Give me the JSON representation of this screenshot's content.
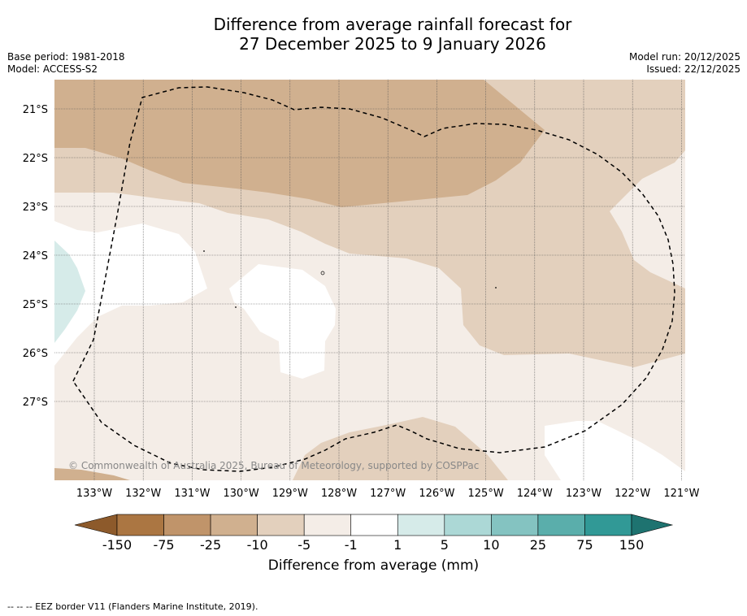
{
  "title": {
    "line1": "Difference from average rainfall forecast for",
    "line2": "27 December 2025 to 9 January 2026"
  },
  "meta_left": {
    "base_period": "Base period: 1981-2018",
    "model": "Model: ACCESS-S2"
  },
  "meta_right": {
    "model_run": "Model run: 20/12/2025",
    "issued": "Issued: 22/12/2025"
  },
  "map": {
    "lat_labels": [
      "21°S",
      "22°S",
      "23°S",
      "24°S",
      "25°S",
      "26°S",
      "27°S"
    ],
    "lon_labels": [
      "133°W",
      "132°W",
      "131°W",
      "130°W",
      "129°W",
      "128°W",
      "127°W",
      "126°W",
      "125°W",
      "124°W",
      "123°W",
      "122°W",
      "121°W"
    ],
    "copyright": "© Commonwealth of Australia 2025, Bureau of Meteorology, supported by COSPPac",
    "region_legend": [
      {
        "category": "-1 to -5 mm",
        "color": "#f4ede7"
      },
      {
        "category": "-5 to -10 mm",
        "color": "#e3d0bd"
      },
      {
        "category": "-10 to -25 mm",
        "color": "#d0b08f"
      },
      {
        "category": "-1 to 1 mm",
        "color": "#ffffff"
      },
      {
        "category": "1 to 5 mm",
        "color": "#d6ebe9"
      }
    ]
  },
  "colorbar": {
    "ticks": [
      "-150",
      "-75",
      "-25",
      "-10",
      "-5",
      "-1",
      "1",
      "5",
      "10",
      "25",
      "75",
      "150"
    ],
    "colors": [
      "#ab7642",
      "#c0946a",
      "#d0b08f",
      "#e3d0bd",
      "#f4ede7",
      "#ffffff",
      "#d6ebe9",
      "#acd8d6",
      "#84c3c1",
      "#5aaeab",
      "#319996"
    ],
    "under_color": "#8d5a2b",
    "over_color": "#1e7370",
    "label": "Difference from average (mm)"
  },
  "footnote": "--  --  -- EEZ border V11 (Flanders Marine Institute, 2019)."
}
